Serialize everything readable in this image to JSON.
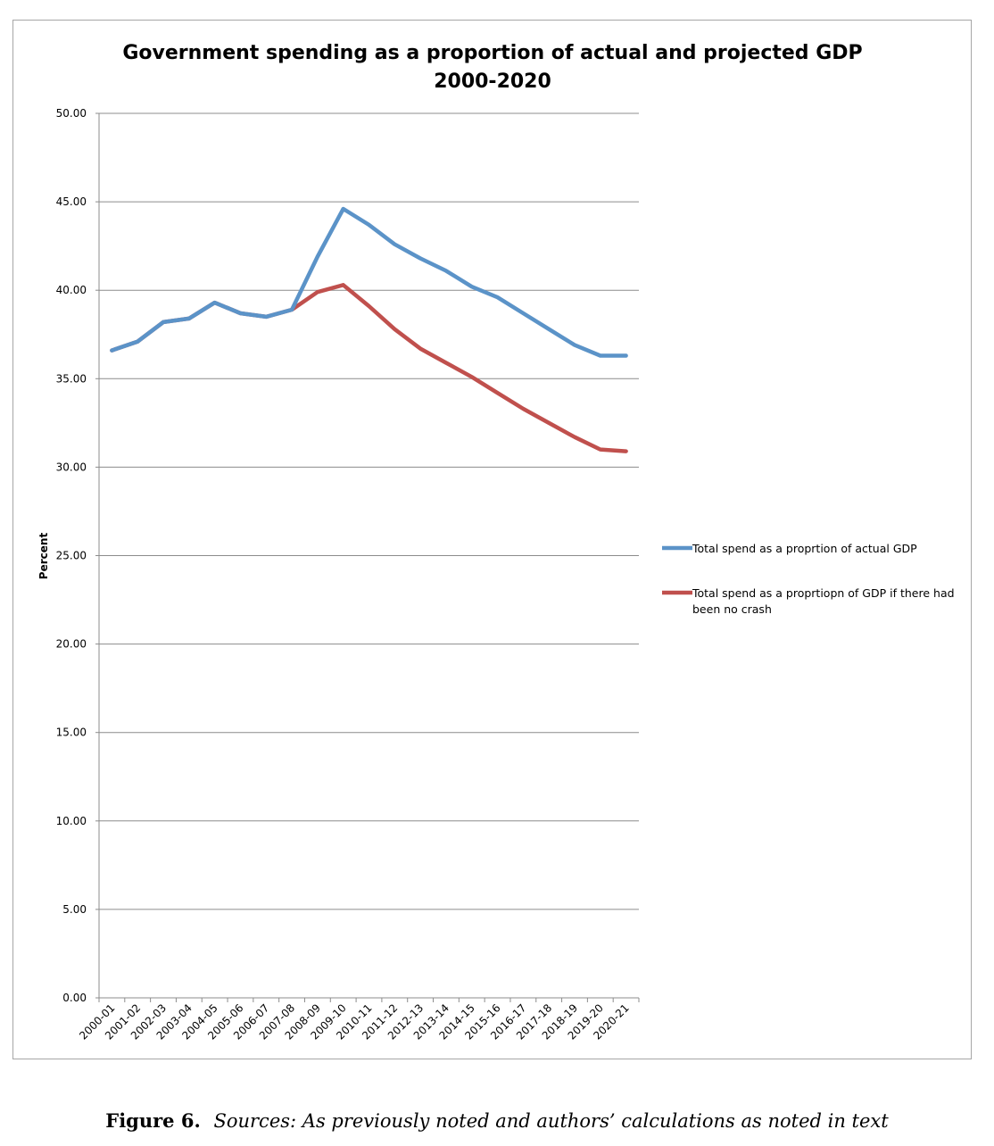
{
  "caption": {
    "figure_label": "Figure 6.",
    "text": "Sources: As previously noted and authors’ calculations as noted in text"
  },
  "chart_data": {
    "type": "line",
    "title": "Government spending as a proportion of actual and projected GDP",
    "subtitle": "2000-2020",
    "xlabel": "",
    "ylabel": "Percent",
    "ylim": [
      0,
      50
    ],
    "yticks": [
      "0.00",
      "5.00",
      "10.00",
      "15.00",
      "20.00",
      "25.00",
      "30.00",
      "35.00",
      "40.00",
      "45.00",
      "50.00"
    ],
    "grid": true,
    "legend_position": "right",
    "categories": [
      "2000-01",
      "2001-02",
      "2002-03",
      "2003-04",
      "2004-05",
      "2005-06",
      "2006-07",
      "2007-08",
      "2008-09",
      "2009-10",
      "2010-11",
      "2011-12",
      "2012-13",
      "2013-14",
      "2014-15",
      "2015-16",
      "2016-17",
      "2017-18",
      "2018-19",
      "2019-20",
      "2020-21"
    ],
    "series": [
      {
        "name": "Total spend as a proprtion of actual GDP",
        "color": "#5b93c8",
        "values": [
          36.6,
          37.1,
          38.2,
          38.4,
          39.3,
          38.7,
          38.5,
          38.9,
          41.9,
          44.6,
          43.7,
          42.6,
          41.8,
          41.1,
          40.2,
          39.6,
          38.7,
          37.8,
          36.9,
          36.3,
          36.3
        ]
      },
      {
        "name": "Total spend as a proprtiopn of GDP if there had been no crash",
        "name_lines": [
          "Total spend as a proprtiopn of GDP if there had",
          "been no crash"
        ],
        "color": "#c0504d",
        "values": [
          36.6,
          37.1,
          38.2,
          38.4,
          39.3,
          38.7,
          38.5,
          38.9,
          39.9,
          40.3,
          39.1,
          37.8,
          36.7,
          35.9,
          35.1,
          34.2,
          33.3,
          32.5,
          31.7,
          31.0,
          30.9
        ]
      }
    ]
  }
}
